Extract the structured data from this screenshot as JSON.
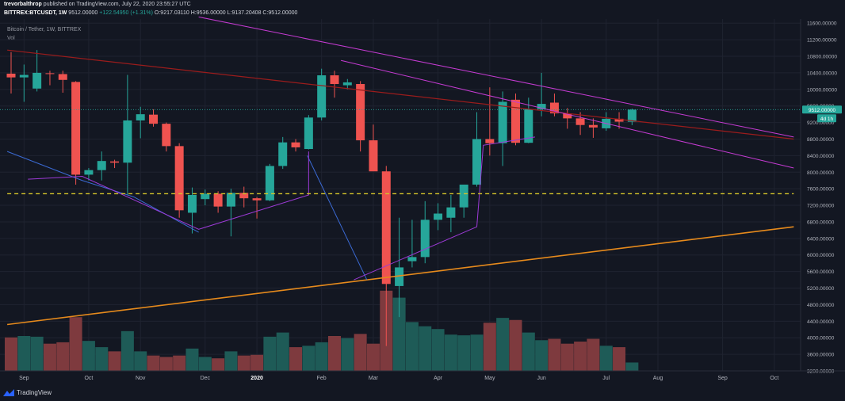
{
  "header": {
    "author": "trevorbalthrop",
    "published_text": "published on TradingView.com, July 22, 2020 23:55:27 UTC",
    "symbol": "BITTREX:BTCUSDT, 1W",
    "price": "9512.00000",
    "change": "+122.54950 (+1.31%)",
    "ohlc": "O:9217.03110 H:9536.00000 L:9137.20408 C:9512.00000"
  },
  "legend": {
    "title": "Bitcoin / Tether, 1W, BITTREX",
    "vol_label": "Vol"
  },
  "footer": {
    "brand": "TradingView"
  },
  "colors": {
    "background": "#131722",
    "up": "#26a69a",
    "down": "#ef5350",
    "vol_up": "#1e5b57",
    "vol_down": "#7e3a3e",
    "orange_trend": "#e68a1c",
    "red_trend": "#9b1c1c",
    "magenta_channel": "#c53bd2",
    "purple_line": "#9c3ad6",
    "blue_line": "#3b6ad4",
    "yellow_level": "#d4c32a",
    "price_tag": "#26a69a"
  },
  "chart_data": {
    "type": "candlestick",
    "timeframe": "1W",
    "ylim": [
      3200,
      11700
    ],
    "y_ticks": [
      "11600.00000",
      "11200.00000",
      "10800.00000",
      "10400.00000",
      "10000.00000",
      "9600.00000",
      "9200.00000",
      "8800.00000",
      "8400.00000",
      "8000.00000",
      "7600.00000",
      "7200.00000",
      "6800.00000",
      "6400.00000",
      "6000.00000",
      "5600.00000",
      "5200.00000",
      "4800.00000",
      "4400.00000",
      "4000.00000",
      "3600.00000",
      "3200.00000"
    ],
    "x_ticks": [
      {
        "label": "Sep",
        "i": 1
      },
      {
        "label": "Oct",
        "i": 6
      },
      {
        "label": "Nov",
        "i": 10
      },
      {
        "label": "Dec",
        "i": 15
      },
      {
        "label": "2020",
        "i": 19,
        "bold": true
      },
      {
        "label": "Feb",
        "i": 24
      },
      {
        "label": "Mar",
        "i": 28
      },
      {
        "label": "Apr",
        "i": 33
      },
      {
        "label": "May",
        "i": 37
      },
      {
        "label": "Jun",
        "i": 41
      },
      {
        "label": "Jul",
        "i": 46
      },
      {
        "label": "Aug",
        "i": 50
      },
      {
        "label": "Sep",
        "i": 55
      },
      {
        "label": "Oct",
        "i": 59
      }
    ],
    "last_price_tag": "9512.00000",
    "countdown_tag": "4d 1h",
    "candles": [
      {
        "o": 10380,
        "h": 10900,
        "l": 9900,
        "c": 10290
      },
      {
        "o": 10290,
        "h": 10600,
        "l": 9700,
        "c": 10350
      },
      {
        "o": 10020,
        "h": 10950,
        "l": 9950,
        "c": 10400
      },
      {
        "o": 10390,
        "h": 10450,
        "l": 10100,
        "c": 10380
      },
      {
        "o": 10370,
        "h": 10450,
        "l": 9920,
        "c": 10230
      },
      {
        "o": 10180,
        "h": 10200,
        "l": 7700,
        "c": 7940
      },
      {
        "o": 7940,
        "h": 8100,
        "l": 7800,
        "c": 8050
      },
      {
        "o": 8050,
        "h": 8500,
        "l": 7800,
        "c": 8270
      },
      {
        "o": 8260,
        "h": 8300,
        "l": 8100,
        "c": 8230
      },
      {
        "o": 8230,
        "h": 10350,
        "l": 7450,
        "c": 9250
      },
      {
        "o": 9250,
        "h": 9580,
        "l": 8820,
        "c": 9400
      },
      {
        "o": 9390,
        "h": 9520,
        "l": 9100,
        "c": 9170
      },
      {
        "o": 9170,
        "h": 9200,
        "l": 8500,
        "c": 8630
      },
      {
        "o": 8630,
        "h": 8700,
        "l": 6900,
        "c": 7080
      },
      {
        "o": 7020,
        "h": 7630,
        "l": 6520,
        "c": 7450
      },
      {
        "o": 7350,
        "h": 7580,
        "l": 7200,
        "c": 7480
      },
      {
        "o": 7480,
        "h": 7540,
        "l": 7020,
        "c": 7170
      },
      {
        "o": 7170,
        "h": 7600,
        "l": 6450,
        "c": 7500
      },
      {
        "o": 7500,
        "h": 7650,
        "l": 7150,
        "c": 7370
      },
      {
        "o": 7370,
        "h": 7400,
        "l": 6880,
        "c": 7320
      },
      {
        "o": 7320,
        "h": 8200,
        "l": 7300,
        "c": 8150
      },
      {
        "o": 8150,
        "h": 8850,
        "l": 8080,
        "c": 8720
      },
      {
        "o": 8720,
        "h": 8800,
        "l": 8500,
        "c": 8600
      },
      {
        "o": 8560,
        "h": 9380,
        "l": 8550,
        "c": 9320
      },
      {
        "o": 9320,
        "h": 10500,
        "l": 9250,
        "c": 10340
      },
      {
        "o": 10340,
        "h": 10450,
        "l": 9800,
        "c": 10130
      },
      {
        "o": 10100,
        "h": 10250,
        "l": 10000,
        "c": 10170
      },
      {
        "o": 10130,
        "h": 10200,
        "l": 8500,
        "c": 8770
      },
      {
        "o": 8770,
        "h": 9150,
        "l": 8050,
        "c": 8020
      },
      {
        "o": 8020,
        "h": 8150,
        "l": 3800,
        "c": 5300
      },
      {
        "o": 5250,
        "h": 6900,
        "l": 4500,
        "c": 5700
      },
      {
        "o": 5850,
        "h": 6850,
        "l": 5700,
        "c": 5950
      },
      {
        "o": 5950,
        "h": 7300,
        "l": 5800,
        "c": 6850
      },
      {
        "o": 6850,
        "h": 7250,
        "l": 6600,
        "c": 7000
      },
      {
        "o": 6900,
        "h": 7450,
        "l": 6550,
        "c": 7150
      },
      {
        "o": 7150,
        "h": 7700,
        "l": 6900,
        "c": 7700
      },
      {
        "o": 7700,
        "h": 9450,
        "l": 7650,
        "c": 8800
      },
      {
        "o": 8800,
        "h": 10050,
        "l": 8400,
        "c": 8700
      },
      {
        "o": 8700,
        "h": 9950,
        "l": 8150,
        "c": 9700
      },
      {
        "o": 9750,
        "h": 9900,
        "l": 8650,
        "c": 8710
      },
      {
        "o": 8710,
        "h": 9800,
        "l": 8700,
        "c": 9520
      },
      {
        "o": 9520,
        "h": 10400,
        "l": 9350,
        "c": 9650
      },
      {
        "o": 9680,
        "h": 9900,
        "l": 9350,
        "c": 9420
      },
      {
        "o": 9420,
        "h": 9550,
        "l": 9050,
        "c": 9300
      },
      {
        "o": 9300,
        "h": 9450,
        "l": 8900,
        "c": 9140
      },
      {
        "o": 9140,
        "h": 9300,
        "l": 8830,
        "c": 9080
      },
      {
        "o": 9060,
        "h": 9450,
        "l": 9000,
        "c": 9290
      },
      {
        "o": 9290,
        "h": 9450,
        "l": 9050,
        "c": 9220
      },
      {
        "o": 9217,
        "h": 9536,
        "l": 9137,
        "c": 9512
      }
    ],
    "volume": {
      "ylim": [
        0,
        10
      ],
      "values": [
        4.8,
        5.0,
        4.9,
        3.9,
        4.1,
        7.7,
        4.3,
        3.4,
        2.8,
        5.7,
        2.8,
        2.2,
        2.0,
        2.2,
        3.2,
        2.0,
        1.8,
        2.8,
        2.2,
        2.3,
        4.9,
        5.5,
        3.4,
        3.6,
        4.1,
        5.0,
        4.7,
        5.3,
        3.9,
        11.5,
        10.5,
        7.0,
        6.4,
        6.0,
        5.2,
        5.1,
        5.2,
        6.9,
        7.6,
        7.3,
        5.5,
        4.4,
        4.6,
        3.9,
        4.2,
        4.6,
        3.6,
        3.4,
        1.2
      ]
    },
    "trendlines": [
      {
        "name": "orange-support",
        "color": "orange_trend",
        "points": [
          [
            -0.3,
            4320
          ],
          [
            60.5,
            6680
          ]
        ]
      },
      {
        "name": "red-resistance",
        "color": "red_trend",
        "points": [
          [
            -0.3,
            10950
          ],
          [
            60.5,
            8800
          ]
        ]
      },
      {
        "name": "magenta-upper",
        "color": "magenta_channel",
        "points": [
          [
            14.5,
            11750
          ],
          [
            60.5,
            8850
          ]
        ]
      },
      {
        "name": "magenta-lower",
        "color": "magenta_channel",
        "points": [
          [
            25.5,
            10700
          ],
          [
            60.5,
            8100
          ]
        ]
      },
      {
        "name": "blue-path-1",
        "color": "blue_line",
        "points": [
          [
            -0.3,
            8500
          ],
          [
            5.5,
            7800
          ],
          [
            9.5,
            7400
          ],
          [
            14.5,
            6550
          ]
        ]
      },
      {
        "name": "blue-path-2",
        "color": "blue_line",
        "points": [
          [
            22.9,
            8400
          ],
          [
            27.5,
            5400
          ]
        ]
      },
      {
        "name": "purple-path-1",
        "color": "purple_line",
        "points": [
          [
            1.3,
            7830
          ],
          [
            5.5,
            7900
          ],
          [
            14.5,
            6620
          ],
          [
            23,
            7450
          ],
          [
            23,
            8500
          ]
        ]
      },
      {
        "name": "purple-path-2",
        "color": "purple_line",
        "points": [
          [
            26.5,
            5400
          ],
          [
            36,
            6680
          ],
          [
            36.5,
            8650
          ],
          [
            40.5,
            8850
          ]
        ]
      },
      {
        "name": "yellow-dashed-level",
        "color": "yellow_level",
        "dashed": true,
        "points": [
          [
            -0.3,
            7480
          ],
          [
            60.5,
            7480
          ]
        ]
      }
    ]
  }
}
